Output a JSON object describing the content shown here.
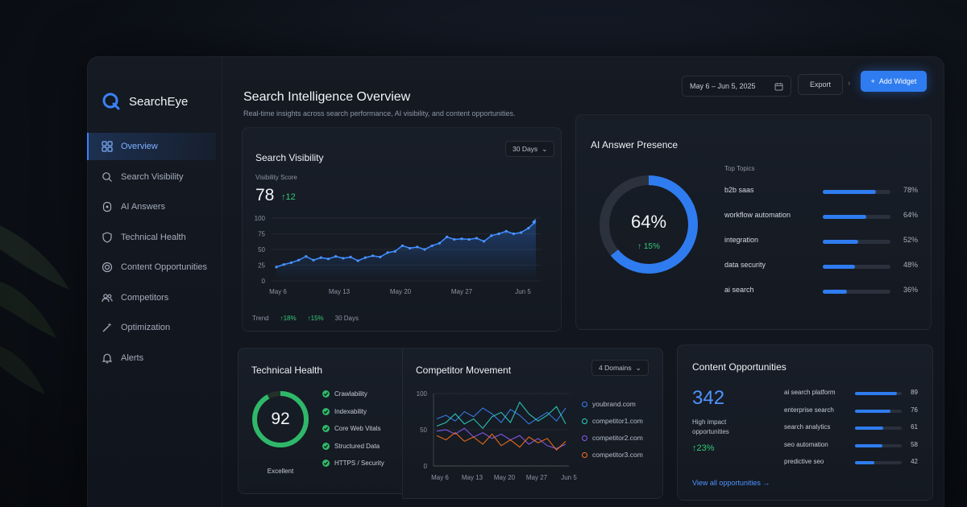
{
  "brand": {
    "name": "SearchEye"
  },
  "sidebar": {
    "items": [
      {
        "label": "Overview",
        "icon": "grid-icon",
        "active": true
      },
      {
        "label": "Search Visibility",
        "icon": "search-icon"
      },
      {
        "label": "AI Answers",
        "icon": "ai-icon"
      },
      {
        "label": "Technical Health",
        "icon": "shield-icon"
      },
      {
        "label": "Content Opportunities",
        "icon": "target-icon"
      },
      {
        "label": "Competitors",
        "icon": "users-icon"
      },
      {
        "label": "Optimization",
        "icon": "wand-icon"
      },
      {
        "label": "Alerts",
        "icon": "bell-icon"
      }
    ]
  },
  "header": {
    "title": "Search Intelligence Overview",
    "subtitle": "Real-time insights across search performance, AI visibility, and content opportunities.",
    "date_range": "May 6 – Jun 5, 2025",
    "export_label": "Export",
    "add_widget_label": "Add Widget"
  },
  "search_visibility": {
    "title": "Search Visibility",
    "range_label": "30 Days",
    "score_label": "Visibility Score",
    "score": "78",
    "delta": "12",
    "trend_label": "Trend",
    "trend_a": "18%",
    "trend_b": "15%",
    "trend_period": "30 Days"
  },
  "ai_presence": {
    "title": "AI Answer Presence",
    "percent": "64%",
    "percent_value": 64,
    "delta": "15%",
    "topics_title": "Top Topics",
    "topics": [
      {
        "label": "b2b saas",
        "pct": "78%",
        "value": 78
      },
      {
        "label": "workflow automation",
        "pct": "64%",
        "value": 64
      },
      {
        "label": "integration",
        "pct": "52%",
        "value": 52
      },
      {
        "label": "data security",
        "pct": "48%",
        "value": 48
      },
      {
        "label": "ai search",
        "pct": "36%",
        "value": 36
      }
    ]
  },
  "technical_health": {
    "title": "Technical Health",
    "score": "92",
    "score_value": 92,
    "status": "Excellent",
    "checks": [
      "Crawlability",
      "Indexability",
      "Core Web Vitals",
      "Structured Data",
      "HTTPS / Security"
    ]
  },
  "competitor_movement": {
    "title": "Competitor Movement",
    "domains_label": "4 Domains",
    "legend": [
      {
        "label": "youbrand.com",
        "color": "#3b82f6"
      },
      {
        "label": "competitor1.com",
        "color": "#2dd4bf"
      },
      {
        "label": "competitor2.com",
        "color": "#8b5cf6"
      },
      {
        "label": "competitor3.com",
        "color": "#f97316"
      }
    ]
  },
  "content_opportunities": {
    "title": "Content Opportunities",
    "count": "342",
    "count_label": "High impact opportunities",
    "delta": "23%",
    "link_label": "View all opportunities",
    "items": [
      {
        "label": "ai search platform",
        "value": 89
      },
      {
        "label": "enterprise search",
        "value": 76
      },
      {
        "label": "search analytics",
        "value": 61
      },
      {
        "label": "seo automation",
        "value": 58
      },
      {
        "label": "predictive seo",
        "value": 42
      }
    ]
  },
  "chart_data": [
    {
      "type": "line",
      "title": "Search Visibility",
      "ylim": [
        0,
        100
      ],
      "yticks": [
        "100",
        "75",
        "50",
        "25",
        "0"
      ],
      "x_tick_labels": [
        "May 6",
        "May 13",
        "May 20",
        "May 27",
        "Jun 5"
      ],
      "series": [
        {
          "values": [
            22,
            26,
            29,
            33,
            39,
            33,
            37,
            35,
            39,
            36,
            38,
            32,
            37,
            40,
            38,
            45,
            47,
            56,
            52,
            54,
            50,
            56,
            60,
            70,
            66,
            67,
            66,
            68,
            63,
            72,
            75,
            79,
            75,
            77,
            84,
            95
          ]
        }
      ]
    },
    {
      "type": "line",
      "title": "Competitor Movement",
      "ylim": [
        0,
        100
      ],
      "yticks": [
        "100",
        "50",
        "0"
      ],
      "x_tick_labels": [
        "May 6",
        "May 13",
        "May 20",
        "May 27",
        "Jun 5"
      ],
      "series": [
        {
          "name": "youbrand.com",
          "color": "#3b82f6",
          "values": [
            65,
            70,
            62,
            75,
            68,
            80,
            72,
            60,
            78,
            70,
            58,
            66,
            74,
            62,
            80
          ]
        },
        {
          "name": "competitor1.com",
          "color": "#2dd4bf",
          "values": [
            55,
            60,
            72,
            58,
            65,
            52,
            68,
            74,
            60,
            88,
            72,
            62,
            70,
            82,
            58
          ]
        },
        {
          "name": "competitor2.com",
          "color": "#8b5cf6",
          "values": [
            48,
            50,
            44,
            52,
            40,
            46,
            38,
            44,
            36,
            42,
            30,
            38,
            28,
            24,
            30
          ]
        },
        {
          "name": "competitor3.com",
          "color": "#f97316",
          "values": [
            42,
            36,
            46,
            34,
            40,
            30,
            44,
            28,
            36,
            26,
            40,
            32,
            38,
            22,
            34
          ]
        }
      ]
    }
  ]
}
